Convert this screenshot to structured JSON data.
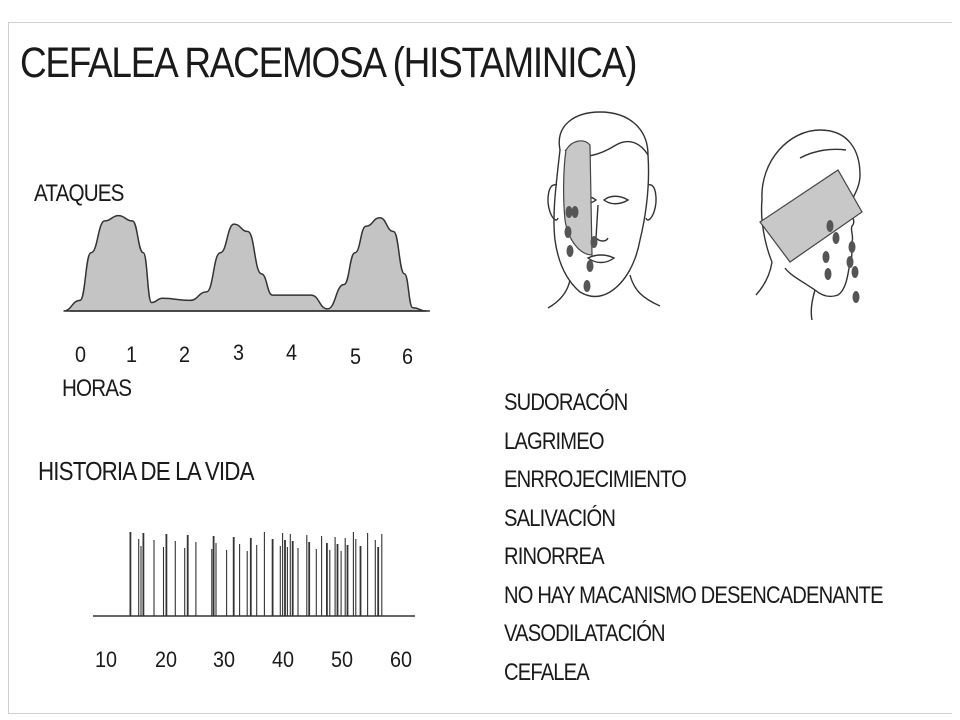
{
  "title": "CEFALEA RACEMOSA (HISTAMINICA)",
  "attacks_chart": {
    "ylabel": "ATAQUES",
    "xlabel": "HORAS",
    "tick_labels": [
      "0",
      "1",
      "2",
      "3",
      "4",
      "5",
      "6"
    ],
    "xlim": [
      0,
      6
    ],
    "fill_color": "#c4c4c4",
    "profile_x": [
      -0.3,
      0.0,
      0.2,
      0.45,
      0.7,
      0.95,
      1.15,
      1.3,
      1.5,
      2.0,
      2.3,
      2.55,
      2.8,
      3.05,
      3.3,
      3.5,
      3.7,
      4.2,
      4.5,
      4.8,
      5.0,
      5.2,
      5.45,
      5.7,
      5.9,
      6.05,
      6.3
    ],
    "profile_y": [
      0.0,
      0.1,
      0.55,
      0.85,
      0.9,
      0.85,
      0.55,
      0.08,
      0.12,
      0.1,
      0.18,
      0.55,
      0.82,
      0.75,
      0.35,
      0.15,
      0.15,
      0.15,
      0.02,
      0.25,
      0.55,
      0.8,
      0.88,
      0.75,
      0.35,
      0.03,
      0.0
    ]
  },
  "life_history": {
    "label": "HISTORIA DE LA VIDA",
    "tick_labels": [
      "10",
      "20",
      "30",
      "40",
      "50",
      "60"
    ],
    "xlim": [
      10,
      60
    ],
    "episodes_years": [
      13.8,
      15.2,
      15.6,
      16.0,
      17.8,
      19.4,
      19.9,
      21.4,
      23.0,
      23.5,
      24.9,
      27.6,
      27.9,
      28.3,
      30.1,
      31.3,
      32.3,
      33.6,
      34.2,
      35.2,
      36.5,
      37.9,
      39.2,
      39.6,
      40.0,
      40.4,
      40.9,
      41.3,
      42.2,
      43.7,
      44.1,
      45.3,
      46.2,
      47.1,
      47.6,
      48.5,
      48.9,
      49.5,
      50.2,
      50.6,
      51.6,
      52.0,
      52.8,
      54.0,
      55.3,
      55.8,
      56.4
    ]
  },
  "symptoms": [
    "SUDORACÓN",
    "LAGRIMEO",
    "ENRROJECIMIENTO",
    "SALIVACIÓN",
    "RINORREA",
    "NO HAY MACANISMO DESENCADENANTE",
    "VASODILATACIÓN",
    "CEFALEA"
  ],
  "illustrations": {
    "front_face": "front-face-illustration",
    "side_face": "profile-face-illustration",
    "pain_area_color": "#c8c8c8"
  }
}
